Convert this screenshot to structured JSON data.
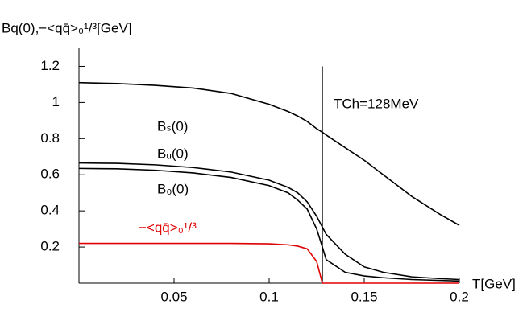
{
  "chart_data": {
    "type": "line",
    "y_label": "Bq(0),−<qq̄>₀¹/³[GeV]",
    "x_label": "T[GeV]",
    "annotation": "TCh=128MeV",
    "vline_x": 0.128,
    "x": [
      0,
      0.02,
      0.04,
      0.06,
      0.08,
      0.1,
      0.11,
      0.115,
      0.12,
      0.125,
      0.128,
      0.13,
      0.14,
      0.15,
      0.16,
      0.175,
      0.19,
      0.2
    ],
    "series": [
      {
        "name": "Bₛ(0)",
        "color": "#000000",
        "values": [
          1.11,
          1.105,
          1.095,
          1.08,
          1.05,
          0.99,
          0.95,
          0.925,
          0.895,
          0.855,
          0.835,
          0.82,
          0.75,
          0.68,
          0.6,
          0.48,
          0.38,
          0.32
        ]
      },
      {
        "name": "Bᵤ(0)",
        "color": "#000000",
        "values": [
          0.665,
          0.663,
          0.655,
          0.64,
          0.615,
          0.57,
          0.53,
          0.5,
          0.45,
          0.37,
          0.31,
          0.27,
          0.16,
          0.09,
          0.06,
          0.035,
          0.025,
          0.02
        ]
      },
      {
        "name": "B₀(0)",
        "color": "#000000",
        "values": [
          0.635,
          0.633,
          0.625,
          0.61,
          0.585,
          0.54,
          0.5,
          0.46,
          0.41,
          0.3,
          0.2,
          0.13,
          0.06,
          0.04,
          0.03,
          0.02,
          0.015,
          0.012
        ]
      },
      {
        "name": "−<qq̄>₀¹/³",
        "color": "#e00000",
        "values": [
          0.22,
          0.22,
          0.22,
          0.22,
          0.22,
          0.218,
          0.212,
          0.205,
          0.19,
          0.12,
          0,
          0,
          0,
          0,
          0,
          0,
          0,
          0
        ]
      }
    ],
    "xlim": [
      0,
      0.2
    ],
    "ylim": [
      0,
      1.3
    ],
    "xticks": [
      0.05,
      0.1,
      0.15,
      0.2
    ],
    "yticks": [
      0.2,
      0.4,
      0.6,
      0.8,
      1,
      1.2
    ]
  }
}
